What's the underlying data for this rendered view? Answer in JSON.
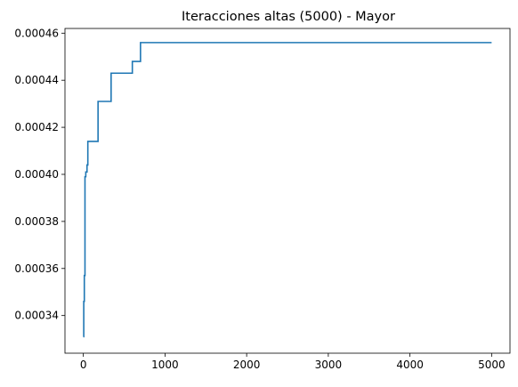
{
  "chart_data": {
    "type": "line",
    "title": "Iteracciones altas (5000) - Mayor",
    "xlabel": "",
    "ylabel": "",
    "xlim": [
      -225,
      5225
    ],
    "ylim": [
      0.000324,
      0.000462
    ],
    "x_ticks": [
      0,
      1000,
      2000,
      3000,
      4000,
      5000
    ],
    "x_tick_labels": [
      "0",
      "1000",
      "2000",
      "3000",
      "4000",
      "5000"
    ],
    "y_ticks": [
      0.00034,
      0.00036,
      0.00038,
      0.0004,
      0.00042,
      0.00044,
      0.00046
    ],
    "y_tick_labels": [
      "0.00034",
      "0.00036",
      "0.00038",
      "0.00040",
      "0.00042",
      "0.00044",
      "0.00046"
    ],
    "grid": false,
    "legend": "none",
    "series": [
      {
        "color": "#1f77b4",
        "step": true,
        "x": [
          0,
          5,
          12,
          20,
          30,
          45,
          55,
          180,
          340,
          600,
          700,
          5000
        ],
        "y": [
          0.000331,
          0.000346,
          0.000357,
          0.000399,
          0.000401,
          0.000404,
          0.000414,
          0.000431,
          0.000443,
          0.000448,
          0.000456,
          0.000456
        ]
      }
    ]
  }
}
